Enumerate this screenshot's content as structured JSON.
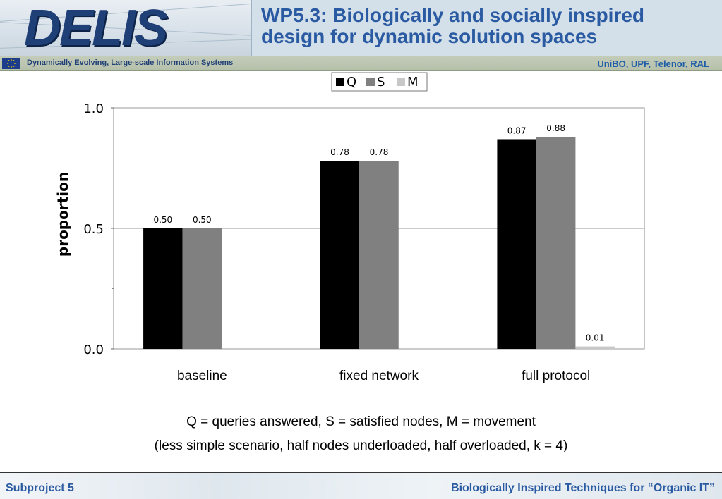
{
  "header": {
    "logo": "DELIS",
    "title_line1": "WP5.3: Biologically and socially inspired",
    "title_line2": "design for dynamic solution spaces",
    "subtitle_left": "Dynamically Evolving, Large-scale Information Systems",
    "subtitle_right": "UniBO, UPF, Telenor, RAL"
  },
  "chart_data": {
    "type": "bar",
    "categories": [
      "baseline",
      "fixed network",
      "full protocol"
    ],
    "series": [
      {
        "name": "Q",
        "color": "#000000",
        "values": [
          0.5,
          0.78,
          0.87
        ],
        "labels": [
          "0.50",
          "0.78",
          "0.87"
        ]
      },
      {
        "name": "S",
        "color": "#808080",
        "values": [
          0.5,
          0.78,
          0.88
        ],
        "labels": [
          "0.50",
          "0.78",
          "0.88"
        ]
      },
      {
        "name": "M",
        "color": "#c8c8c8",
        "values": [
          0.0,
          0.0,
          0.01
        ],
        "labels": [
          "",
          "",
          "0.01"
        ]
      }
    ],
    "ylabel": "proportion",
    "xlabel": "",
    "ylim": [
      0,
      1
    ],
    "yticks": [
      "0.0",
      "0.5",
      "1.0"
    ],
    "ytick_values": [
      0,
      0.5,
      1.0
    ],
    "grid": "horizontal at major ticks",
    "legend": "top-center"
  },
  "captions": {
    "line1": "Q = queries answered, S = satisfied nodes, M = movement",
    "line2": "(less simple scenario, half nodes underloaded, half overloaded, k = 4)"
  },
  "footer": {
    "left": "Subproject 5",
    "right": "Biologically Inspired Techniques for “Organic IT”"
  }
}
